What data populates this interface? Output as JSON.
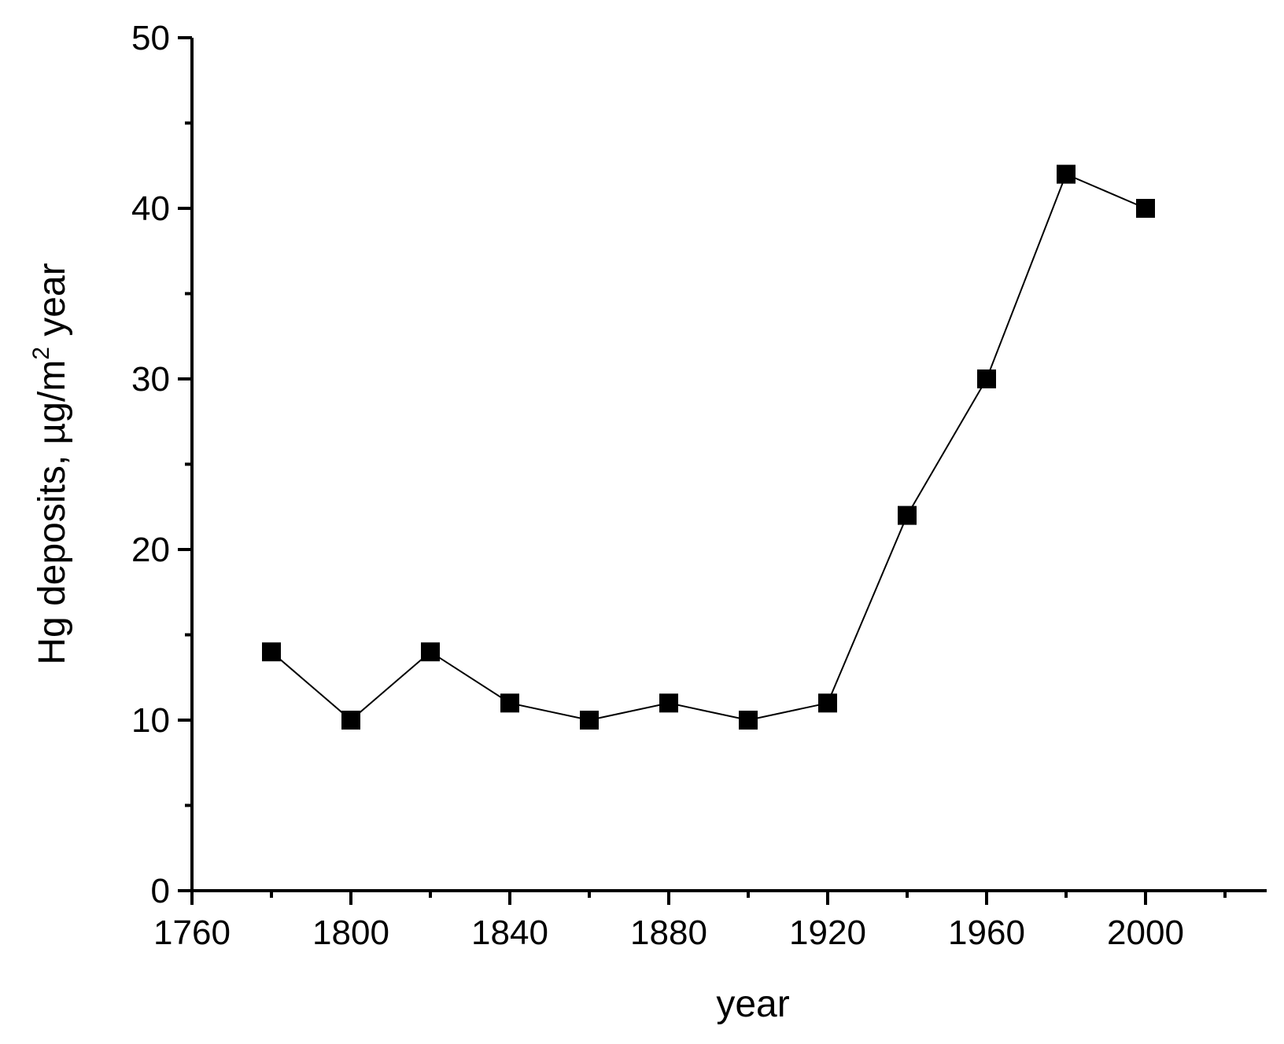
{
  "chart_data": {
    "type": "line",
    "title": "",
    "xlabel": "year",
    "ylabel": "Hg deposits, µg/m",
    "ylabel_superscript": "2",
    "ylabel_suffix": " year",
    "xlim": [
      1760,
      2020
    ],
    "ylim": [
      0,
      50
    ],
    "x_major_ticks": [
      1760,
      1800,
      1840,
      1880,
      1920,
      1960,
      2000
    ],
    "x_minor_ticks": [
      1780,
      1820,
      1860,
      1900,
      1940,
      1980,
      2020
    ],
    "y_major_ticks": [
      0,
      10,
      20,
      30,
      40,
      50
    ],
    "y_minor_ticks": [
      5,
      15,
      25,
      35,
      45
    ],
    "grid": false,
    "legend": "none",
    "series": [
      {
        "marker": "square",
        "color": "#000000",
        "x": [
          1780,
          1800,
          1820,
          1840,
          1860,
          1880,
          1900,
          1920,
          1940,
          1960,
          1980,
          2000
        ],
        "y": [
          14,
          10,
          14,
          11,
          10,
          11,
          10,
          11,
          22,
          30,
          42,
          40
        ]
      }
    ]
  }
}
